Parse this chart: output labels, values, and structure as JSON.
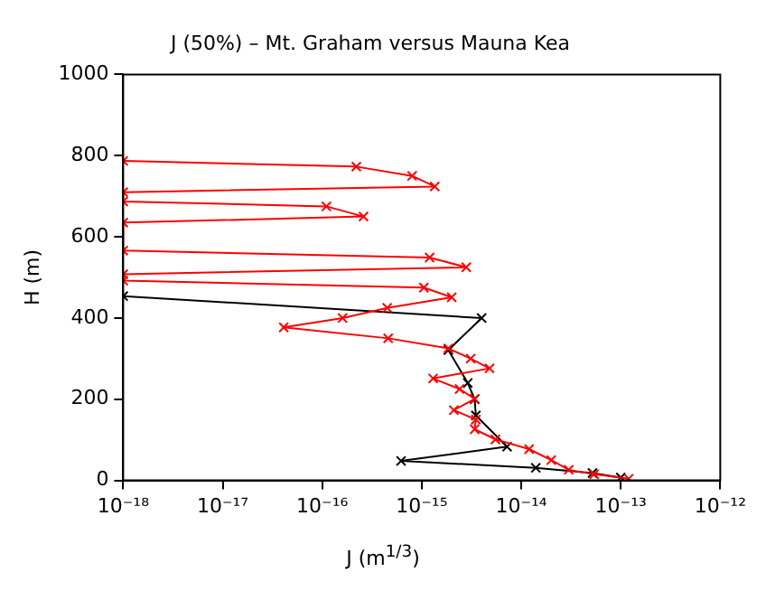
{
  "chart_data": {
    "type": "line",
    "title": "J (50%) – Mt. Graham versus Mauna Kea",
    "xlabel": "J (m$^{1/3}$)",
    "ylabel": "H (m)",
    "log": "x",
    "xlim": [
      1e-18,
      1e-12
    ],
    "xticks": [
      {
        "value": 1e-18,
        "label": "10⁻¹⁸"
      },
      {
        "value": 1e-17,
        "label": "10⁻¹⁷"
      },
      {
        "value": 1e-16,
        "label": "10⁻¹⁶"
      },
      {
        "value": 1e-15,
        "label": "10⁻¹⁵"
      },
      {
        "value": 1e-14,
        "label": "10⁻¹⁴"
      },
      {
        "value": 1e-13,
        "label": "10⁻¹³"
      },
      {
        "value": 1e-12,
        "label": "10⁻¹²"
      }
    ],
    "ylim": [
      0,
      1000
    ],
    "yticks": [
      0,
      200,
      400,
      600,
      800,
      1000
    ],
    "marker": "cross",
    "line_style": "solid",
    "series": [
      {
        "color": "#ff0000",
        "x": [
          1e-18,
          2.2e-16,
          8e-16,
          1.35e-15,
          1e-18,
          1e-18,
          1.1e-16,
          2.6e-16,
          1e-18,
          1e-18,
          1.2e-15,
          2.8e-15,
          1e-18,
          1e-18,
          1.05e-15,
          2e-15,
          4.5e-16,
          1.6e-16,
          4.1e-17,
          4.6e-16,
          1.85e-15,
          3.1e-15,
          4.8e-15,
          1.3e-15,
          2.4e-15,
          3.4e-15,
          2.1e-15,
          3.5e-15,
          3.4e-15,
          5.5e-15,
          1.2e-14,
          2e-14,
          3e-14,
          5.4e-14,
          1.2e-13
        ],
        "values": [
          787,
          773,
          750,
          724,
          710,
          687,
          675,
          650,
          635,
          566,
          549,
          525,
          508,
          492,
          475,
          451,
          425,
          400,
          377,
          350,
          325,
          300,
          276,
          251,
          225,
          201,
          173,
          150,
          126,
          101,
          77,
          50,
          26,
          15,
          4
        ]
      },
      {
        "color": "#000000",
        "x": [
          1e-18,
          4e-15,
          1.85e-15,
          2.9e-15,
          3.4e-15,
          3.5e-15,
          7.2e-15,
          6.2e-16,
          1.4e-14,
          5.2e-14,
          1e-13
        ],
        "values": [
          454,
          400,
          321,
          240,
          200,
          160,
          83,
          48,
          31,
          18,
          7
        ]
      }
    ]
  }
}
